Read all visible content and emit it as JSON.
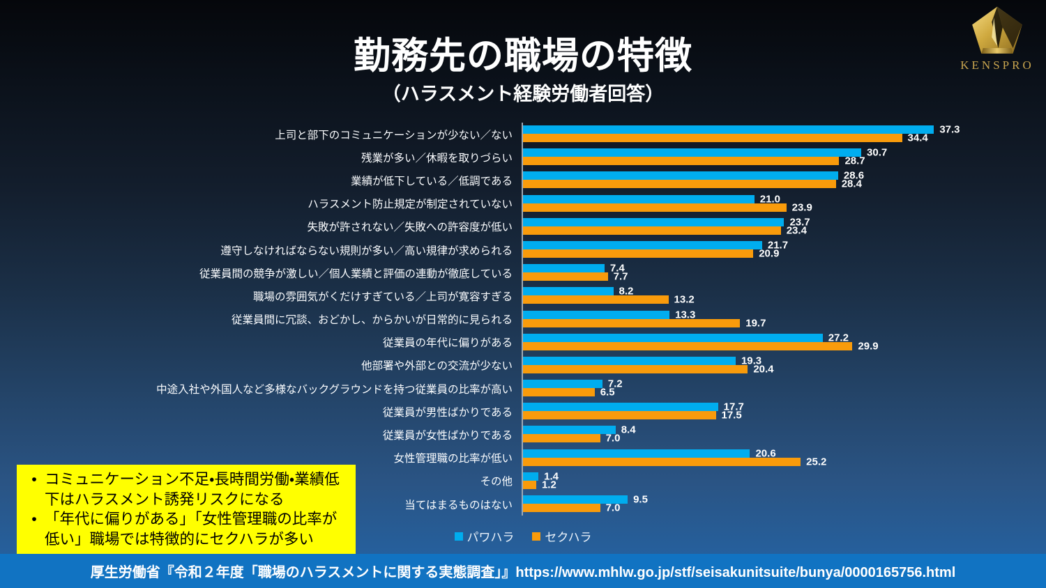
{
  "header": {
    "title": "勤務先の職場の特徴",
    "subtitle": "（ハラスメント経験労働者回答）"
  },
  "logo": {
    "brand": "KENSPRO"
  },
  "chart_data": {
    "type": "bar",
    "orientation": "horizontal",
    "title": "",
    "xlabel": "",
    "ylabel": "",
    "xlim": [
      0,
      40
    ],
    "grid": false,
    "legend_position": "bottom",
    "value_labels": "one-decimal",
    "categories": [
      "上司と部下のコミュニケーションが少ない／ない",
      "残業が多い／休暇を取りづらい",
      "業績が低下している／低調である",
      "ハラスメント防止規定が制定されていない",
      "失敗が許されない／失敗への許容度が低い",
      "遵守しなければならない規則が多い／高い規律が求められる",
      "従業員間の競争が激しい／個人業績と評価の連動が徹底している",
      "職場の雰囲気がくだけすぎている／上司が寛容すぎる",
      "従業員間に冗談、おどかし、からかいが日常的に見られる",
      "従業員の年代に偏りがある",
      "他部署や外部との交流が少ない",
      "中途入社や外国人など多様なバックグラウンドを持つ従業員の比率が高い",
      "従業員が男性ばかりである",
      "従業員が女性ばかりである",
      "女性管理職の比率が低い",
      "その他",
      "当てはまるものはない"
    ],
    "series": [
      {
        "name": "パワハラ",
        "color": "#00adef",
        "values": [
          37.3,
          30.7,
          28.6,
          21.0,
          23.7,
          21.7,
          7.4,
          8.2,
          13.3,
          27.2,
          19.3,
          7.2,
          17.7,
          8.4,
          20.6,
          1.4,
          9.5
        ]
      },
      {
        "name": "セクハラ",
        "color": "#f99b0b",
        "values": [
          34.4,
          28.7,
          28.4,
          23.9,
          23.4,
          20.9,
          7.7,
          13.2,
          19.7,
          29.9,
          20.4,
          6.5,
          17.5,
          7.0,
          25.2,
          1.2,
          7.0
        ]
      }
    ]
  },
  "annotation_box": {
    "bullets": [
      "コミュニケーション不足・長時間労働・業績低下はハラスメント誘発リスクになる",
      "「年代に偏りがある」「女性管理職の比率が低い」職場では特徴的にセクハラが多い"
    ],
    "bg_color": "#ffff00"
  },
  "footer": {
    "source": "厚生労働省『令和２年度「職場のハラスメントに関する実態調査」』https://www.mhlw.go.jp/stf/seisakunitsuite/bunya/0000165756.html"
  },
  "colors": {
    "pawahara_blue": "#00adef",
    "sekuhara_orange": "#f99b0b",
    "footer_bar_blue": "#1173c2",
    "axis_line": "#9faab4",
    "logo_gold": "#c9a54f"
  }
}
